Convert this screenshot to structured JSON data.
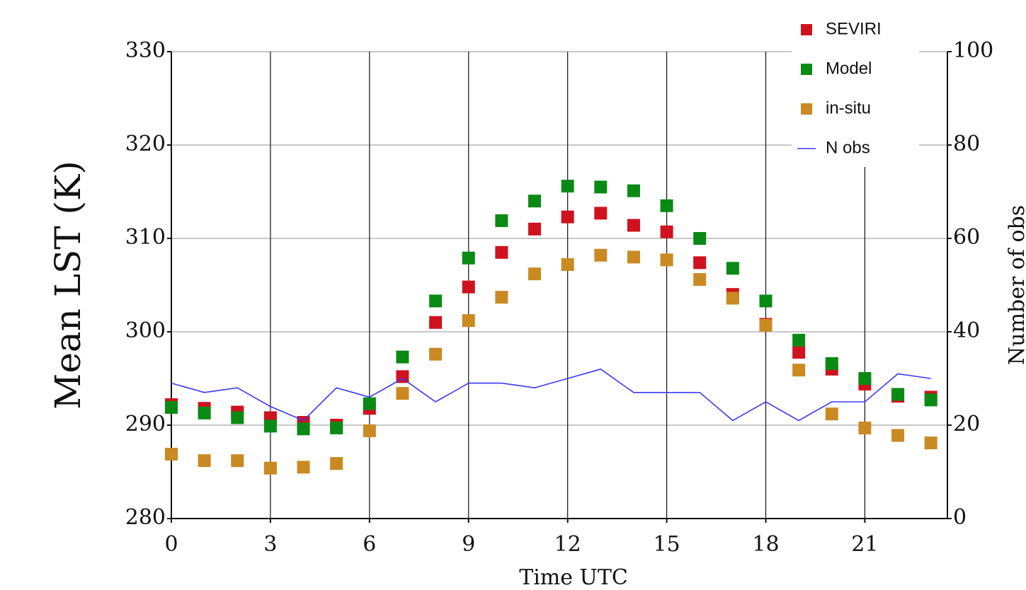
{
  "chart_data": {
    "type": "scatter",
    "x_label": "Time UTC",
    "y_label": "Mean LST (K)",
    "y2_label": "Number of obs",
    "x": [
      0,
      1,
      2,
      3,
      4,
      5,
      6,
      7,
      8,
      9,
      10,
      11,
      12,
      13,
      14,
      15,
      16,
      17,
      18,
      19,
      20,
      21,
      22,
      23
    ],
    "series": [
      {
        "name": "SEVIRI",
        "color": "#d0121e",
        "values": [
          292.2,
          291.8,
          291.4,
          290.8,
          290.3,
          290.0,
          291.8,
          295.2,
          301.0,
          304.8,
          308.5,
          311.0,
          312.3,
          312.7,
          311.4,
          310.7,
          307.4,
          304.0,
          300.8,
          297.8,
          296.0,
          294.4,
          293.1,
          293.0
        ]
      },
      {
        "name": "Model",
        "color": "#0a8a14",
        "values": [
          291.9,
          291.3,
          290.8,
          289.9,
          289.6,
          289.7,
          292.3,
          297.3,
          303.3,
          307.9,
          311.9,
          314.0,
          315.6,
          315.5,
          315.1,
          313.5,
          310.0,
          306.8,
          303.3,
          299.1,
          296.6,
          295.0,
          293.3,
          292.7
        ]
      },
      {
        "name": "in-situ",
        "color": "#c98a22",
        "values": [
          286.9,
          286.2,
          286.2,
          285.4,
          285.5,
          285.9,
          289.4,
          293.4,
          297.6,
          301.2,
          303.7,
          306.2,
          307.2,
          308.2,
          308.0,
          307.7,
          305.6,
          303.6,
          300.7,
          295.9,
          291.2,
          289.7,
          288.9,
          288.1
        ]
      },
      {
        "name": "N obs",
        "color": "#3a3af5",
        "style": "line",
        "axis": "y2",
        "values": [
          29,
          27,
          28,
          24,
          21,
          28,
          26,
          30,
          25,
          29,
          29,
          28,
          30,
          32,
          27,
          27,
          27,
          21,
          25,
          21,
          25,
          25,
          31,
          30
        ]
      }
    ],
    "xlim": [
      0,
      23.5
    ],
    "xticks": [
      0,
      3,
      6,
      9,
      12,
      15,
      18,
      21
    ],
    "ylim": [
      280,
      330
    ],
    "yticks": [
      280,
      290,
      300,
      310,
      320,
      330
    ],
    "y2lim": [
      0,
      100
    ],
    "y2ticks": [
      0,
      20,
      40,
      60,
      80,
      100
    ],
    "grid": true,
    "legend": "upper right"
  }
}
